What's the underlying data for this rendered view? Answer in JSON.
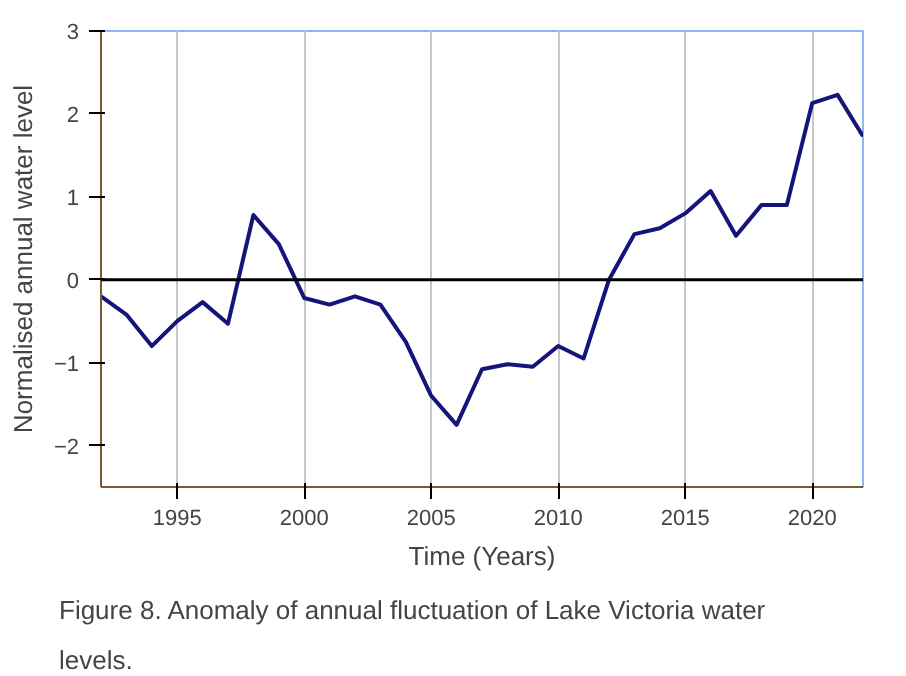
{
  "chart_data": {
    "type": "line",
    "xlabel": "Time (Years)",
    "ylabel": "Normalised annual water level",
    "x": [
      1992,
      1993,
      1994,
      1995,
      1996,
      1997,
      1998,
      1999,
      2000,
      2001,
      2002,
      2003,
      2004,
      2005,
      2006,
      2007,
      2008,
      2009,
      2010,
      2011,
      2012,
      2013,
      2014,
      2015,
      2016,
      2017,
      2018,
      2019,
      2020,
      2021,
      2022
    ],
    "series": [
      {
        "color": "#14147a",
        "values": [
          -0.2,
          -0.42,
          -0.8,
          -0.5,
          -0.27,
          -0.53,
          0.78,
          0.43,
          -0.22,
          -0.3,
          -0.2,
          -0.3,
          -0.75,
          -1.4,
          -1.75,
          -1.08,
          -1.02,
          -1.05,
          -0.8,
          -0.95,
          0.0,
          0.55,
          0.62,
          0.8,
          1.07,
          0.53,
          0.9,
          0.9,
          2.13,
          2.23,
          1.73
        ]
      }
    ],
    "xlim": [
      1992,
      2022
    ],
    "xticks": [
      1995,
      2000,
      2005,
      2010,
      2015,
      2020
    ],
    "ylim": [
      -2.5,
      3
    ],
    "yticks": [
      -2,
      -1,
      0,
      1,
      2,
      3
    ],
    "grid": "x",
    "marker": "none",
    "line_style": "solid",
    "ref_lines": [
      {
        "axis": "y",
        "value": 0,
        "color": "#000000"
      }
    ],
    "annotations": [
      "Figure 8. Anomaly of annual fluctuation of Lake Victoria water levels."
    ]
  }
}
